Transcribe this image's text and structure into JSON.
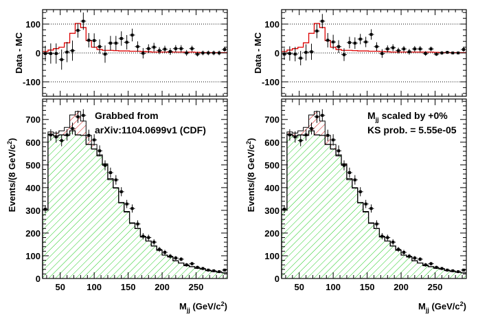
{
  "chart_data": [
    {
      "type": "step+errorbar",
      "panel": "left",
      "top": {
        "ylabel": "Data - MC",
        "ylim": [
          -150,
          150
        ],
        "yticks": [
          -100,
          0,
          100
        ],
        "grid_lines_at": [
          -100,
          0,
          100
        ],
        "xlim": [
          24,
          296
        ],
        "bin_width": 8,
        "mc_diff_step": [
          5,
          10,
          15,
          20,
          35,
          68,
          102,
          88,
          43,
          20,
          12,
          9,
          9,
          8,
          7,
          7,
          6,
          6,
          5,
          4,
          3,
          3,
          3,
          3,
          3,
          3,
          3,
          3,
          2,
          1,
          1,
          1,
          1,
          1
        ],
        "points": [
          -2,
          -2,
          -2,
          -23,
          3,
          8,
          78,
          110,
          44,
          43,
          22,
          -4,
          34,
          34,
          50,
          37,
          62,
          22,
          -1,
          15,
          20,
          8,
          13,
          5,
          15,
          15,
          0,
          15,
          -4,
          0,
          0,
          0,
          0,
          12
        ],
        "errors": [
          27,
          35,
          35,
          35,
          35,
          35,
          25,
          30,
          25,
          25,
          25,
          30,
          25,
          25,
          25,
          25,
          22,
          18,
          18,
          15,
          15,
          12,
          12,
          12,
          12,
          12,
          10,
          10,
          8,
          8,
          8,
          8,
          8,
          8
        ]
      },
      "bottom": {
        "ylabel": "Events/(8 GeV/c²)",
        "xlabel": "M_jj (GeV/c²)",
        "ylim": [
          0,
          790
        ],
        "yticks": [
          0,
          100,
          200,
          300,
          400,
          500,
          600,
          700
        ],
        "xticks": [
          50,
          100,
          150,
          200,
          250
        ],
        "xlim": [
          24,
          296
        ],
        "annotation": [
          "Grabbed from",
          "arXiv:1104.0699v1 (CDF)"
        ],
        "bin_edges_start": 24,
        "bin_width": 8,
        "total_mc": [
          305,
          645,
          640,
          650,
          665,
          720,
          735,
          693,
          630,
          590,
          545,
          505,
          440,
          400,
          335,
          295,
          245,
          220,
          185,
          165,
          143,
          125,
          103,
          95,
          78,
          68,
          57,
          52,
          45,
          42,
          35,
          31,
          28,
          25
        ],
        "background": [
          305,
          635,
          628,
          632,
          630,
          650,
          632,
          630,
          590,
          570,
          540,
          500,
          435,
          398,
          333,
          293,
          243,
          220,
          183,
          165,
          143,
          124,
          103,
          95,
          78,
          68,
          57,
          52,
          45,
          42,
          35,
          31,
          28,
          25
        ],
        "data": [
          305,
          632,
          623,
          607,
          632,
          660,
          712,
          718,
          630,
          610,
          562,
          498,
          466,
          434,
          382,
          328,
          308,
          240,
          186,
          180,
          160,
          128,
          115,
          98,
          90,
          85,
          60,
          65,
          49,
          44,
          37,
          34,
          30,
          37
        ],
        "data_errors": [
          17,
          25,
          25,
          25,
          25,
          26,
          27,
          27,
          25,
          25,
          24,
          22,
          22,
          21,
          20,
          18,
          18,
          16,
          14,
          13,
          13,
          11,
          11,
          10,
          9,
          9,
          8,
          8,
          7,
          7,
          6,
          6,
          6,
          6
        ]
      },
      "colors": {
        "signal_hatch": "#cc0000",
        "background_hatch": "#22cc22",
        "diff_line": "#dd0000",
        "frame": "#000000"
      }
    },
    {
      "type": "step+errorbar",
      "panel": "right",
      "top": {
        "ylabel": "Data - MC",
        "ylim": [
          -150,
          150
        ],
        "yticks": [
          -100,
          0,
          100
        ],
        "grid_lines_at": [
          -100,
          0,
          100
        ],
        "xlim": [
          24,
          296
        ],
        "bin_width": 8,
        "mc_diff_step": [
          5,
          10,
          15,
          20,
          35,
          68,
          102,
          88,
          43,
          20,
          12,
          9,
          9,
          8,
          7,
          7,
          6,
          6,
          5,
          4,
          3,
          3,
          3,
          3,
          3,
          3,
          3,
          3,
          2,
          1,
          1,
          1,
          1,
          1
        ],
        "points": [
          -4,
          -2,
          -4,
          -18,
          2,
          4,
          76,
          110,
          44,
          38,
          22,
          -6,
          36,
          34,
          48,
          38,
          64,
          22,
          -2,
          14,
          18,
          8,
          14,
          4,
          14,
          14,
          -2,
          14,
          -4,
          0,
          2,
          0,
          0,
          12
        ],
        "errors": [
          20,
          25,
          25,
          25,
          28,
          28,
          25,
          25,
          25,
          25,
          22,
          22,
          20,
          20,
          18,
          18,
          18,
          15,
          15,
          12,
          12,
          10,
          10,
          10,
          10,
          10,
          8,
          8,
          6,
          6,
          5,
          5,
          5,
          8
        ]
      },
      "bottom": {
        "ylabel": "Events/(8 GeV/c²)",
        "xlabel": "M_jj (GeV/c²)",
        "ylim": [
          0,
          790
        ],
        "yticks": [
          0,
          100,
          200,
          300,
          400,
          500,
          600,
          700
        ],
        "xticks": [
          50,
          100,
          150,
          200,
          250
        ],
        "xlim": [
          24,
          296
        ],
        "annotation": [
          "M_jj scaled by +0%",
          "KS prob. = 5.55e-05"
        ],
        "bin_edges_start": 24,
        "bin_width": 8,
        "total_mc": [
          305,
          645,
          640,
          650,
          665,
          720,
          735,
          693,
          630,
          590,
          545,
          505,
          440,
          400,
          335,
          295,
          245,
          220,
          185,
          165,
          143,
          125,
          103,
          95,
          78,
          68,
          57,
          52,
          45,
          42,
          35,
          31,
          28,
          25
        ],
        "background": [
          305,
          635,
          628,
          632,
          630,
          650,
          632,
          630,
          590,
          570,
          540,
          500,
          435,
          398,
          333,
          293,
          243,
          220,
          183,
          165,
          143,
          124,
          103,
          95,
          78,
          68,
          57,
          52,
          45,
          42,
          35,
          31,
          28,
          25
        ],
        "data": [
          305,
          632,
          623,
          607,
          632,
          660,
          712,
          718,
          630,
          610,
          562,
          498,
          466,
          434,
          382,
          328,
          308,
          240,
          186,
          180,
          160,
          128,
          115,
          98,
          90,
          85,
          60,
          65,
          49,
          44,
          37,
          34,
          30,
          37
        ],
        "data_errors": [
          17,
          25,
          25,
          25,
          25,
          26,
          27,
          27,
          25,
          25,
          24,
          22,
          22,
          21,
          20,
          18,
          18,
          16,
          14,
          13,
          13,
          11,
          11,
          10,
          9,
          9,
          8,
          8,
          7,
          7,
          6,
          6,
          6,
          6
        ]
      },
      "colors": {
        "signal_hatch": "#cc0000",
        "background_hatch": "#22cc22",
        "diff_line": "#dd0000",
        "frame": "#000000"
      }
    }
  ]
}
